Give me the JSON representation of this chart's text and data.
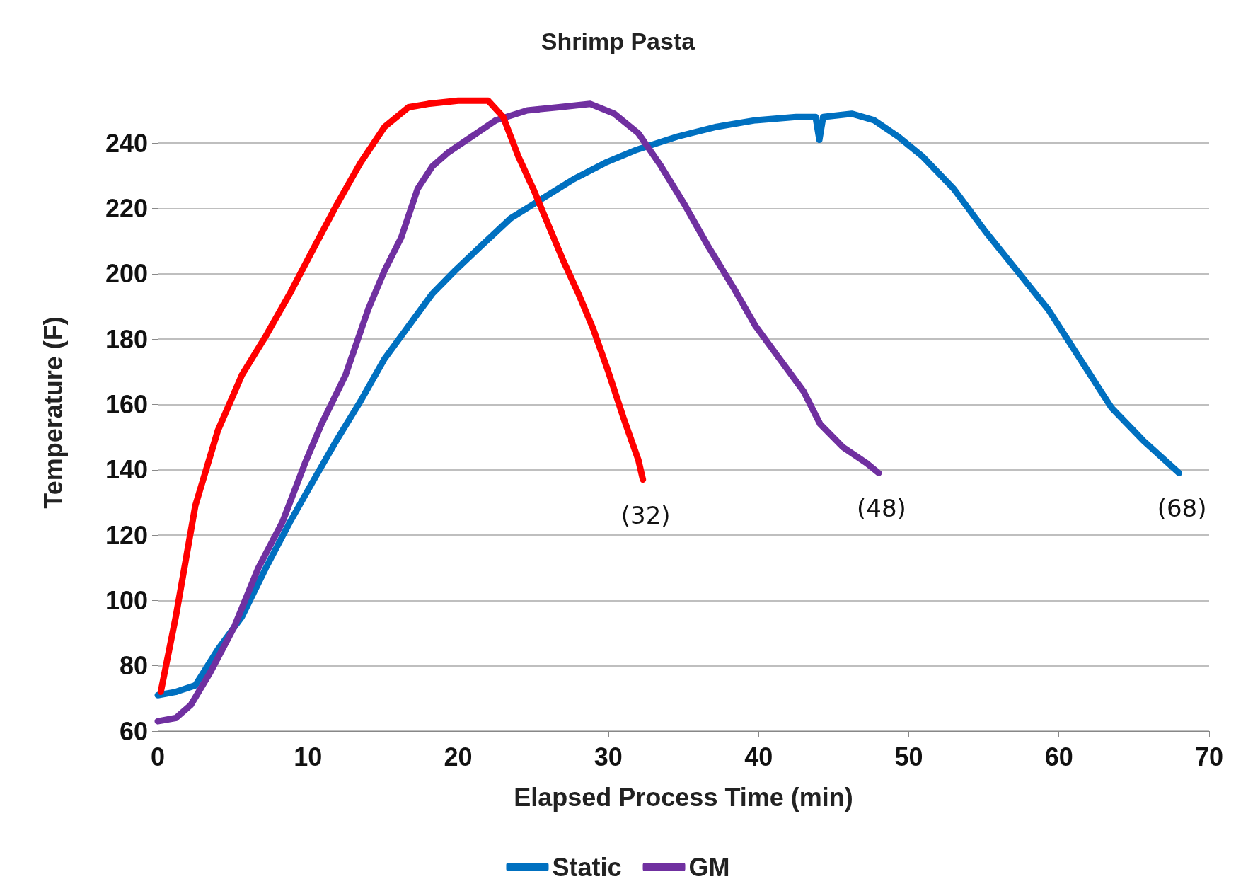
{
  "chart_data": {
    "type": "line",
    "title": "Shrimp Pasta",
    "xlabel": "Elapsed Process Time (min)",
    "ylabel": "Temperature (F)",
    "xlim": [
      0,
      70
    ],
    "xticks": [
      0,
      10,
      20,
      30,
      40,
      50,
      60,
      70
    ],
    "ylim": [
      60,
      255
    ],
    "yticks": [
      60,
      80,
      100,
      120,
      140,
      160,
      180,
      200,
      220,
      240
    ],
    "grid": "y",
    "legend": "bottom",
    "marker": "none",
    "line_style": "solid",
    "series": [
      {
        "name": "Static",
        "color": "#0070c0",
        "x": [
          0,
          1.2,
          2.5,
          4,
          5.6,
          7.2,
          8.8,
          10.4,
          11.9,
          13.5,
          15.1,
          16.7,
          18.3,
          19.8,
          21.4,
          23.5,
          25.6,
          27.7,
          29.8,
          31.9,
          34.6,
          37.2,
          39.8,
          42.5,
          43.8,
          44.05,
          44.3,
          46.2,
          47.7,
          49.3,
          50.9,
          53,
          55.1,
          57.2,
          59.3,
          61.4,
          63.5,
          65.6,
          68
        ],
        "values": [
          71,
          72,
          74,
          85,
          95,
          110,
          124,
          137,
          149,
          161,
          174,
          184,
          194,
          201,
          208,
          217,
          223,
          229,
          234,
          238,
          242,
          245,
          247,
          248,
          248,
          241,
          248,
          249,
          247,
          242,
          236,
          226,
          213,
          201,
          189,
          174,
          159,
          149,
          139
        ]
      },
      {
        "name": "GM",
        "color": "#7030a0",
        "x": [
          0,
          1.2,
          2.2,
          3.5,
          5.1,
          6.7,
          8.3,
          9.8,
          10.9,
          12.5,
          14,
          15.1,
          16.2,
          17.3,
          18.3,
          19.3,
          20.9,
          22.5,
          24.6,
          26.7,
          28.8,
          30.4,
          32,
          33.5,
          35.1,
          36.7,
          38.3,
          39.8,
          41.4,
          43,
          44.1,
          45.6,
          47.2,
          48
        ],
        "values": [
          63,
          64,
          68,
          78,
          92,
          110,
          124,
          142,
          154,
          169,
          189,
          201,
          211,
          226,
          233,
          237,
          242,
          247,
          250,
          251,
          252,
          249,
          243,
          233,
          221,
          208,
          196,
          184,
          174,
          164,
          154,
          147,
          142,
          139
        ]
      },
      {
        "color": "#ff0000",
        "x": [
          0.2,
          1.2,
          2.5,
          4,
          5.6,
          7.2,
          8.8,
          10.4,
          11.9,
          13.5,
          15.1,
          16.7,
          18,
          20,
          22,
          23,
          24,
          25,
          26,
          27,
          28,
          29,
          30,
          31,
          32,
          32.3
        ],
        "values": [
          72,
          95,
          129,
          152,
          169,
          181,
          194,
          208,
          221,
          234,
          245,
          251,
          252,
          253,
          253,
          248,
          236,
          226,
          215,
          204,
          194,
          183,
          170,
          156,
          143,
          137
        ]
      }
    ],
    "annotations": [
      {
        "text": "(32)",
        "x": 32.3,
        "y": 137
      },
      {
        "text": "(48)",
        "x": 48,
        "y": 139
      },
      {
        "text": "(68)",
        "x": 68,
        "y": 139
      }
    ]
  }
}
